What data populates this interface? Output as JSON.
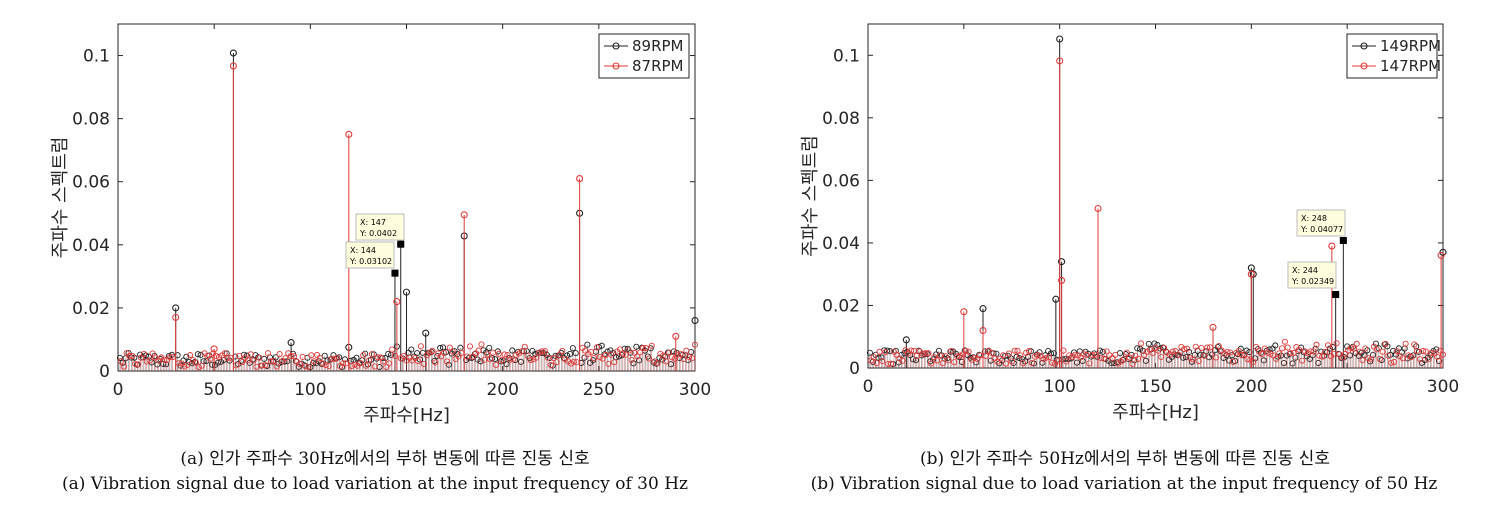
{
  "chart_data": [
    {
      "type": "stem",
      "title": "",
      "xlabel": "주파수[Hz]",
      "ylabel": "주파수 스펙트럼",
      "xlim": [
        0,
        300
      ],
      "ylim": [
        0,
        0.11
      ],
      "xticks": [
        "0",
        "50",
        "100",
        "150",
        "200",
        "250",
        "300"
      ],
      "yticks": [
        "0",
        "0.02",
        "0.04",
        "0.06",
        "0.08",
        "0.1"
      ],
      "legend_position": "top-right",
      "series": [
        {
          "name": "89RPM",
          "color": "#222222",
          "peaks": [
            [
              30,
              0.02
            ],
            [
              60,
              0.1008
            ],
            [
              90,
              0.009
            ],
            [
              120,
              0.0075
            ],
            [
              144,
              0.03102
            ],
            [
              147,
              0.0402
            ],
            [
              150,
              0.025
            ],
            [
              160,
              0.012
            ],
            [
              180,
              0.0428
            ],
            [
              240,
              0.05
            ],
            [
              300,
              0.016
            ]
          ]
        },
        {
          "name": "87RPM",
          "color": "#e03a3a",
          "peaks": [
            [
              30,
              0.017
            ],
            [
              50,
              0.007
            ],
            [
              60,
              0.0967
            ],
            [
              120,
              0.075
            ],
            [
              145,
              0.022
            ],
            [
              180,
              0.0495
            ],
            [
              240,
              0.061
            ],
            [
              290,
              0.011
            ]
          ]
        }
      ],
      "annotations": [
        {
          "x_label": "X: 147",
          "y_label": "Y: 0.0402",
          "x": 147,
          "y": 0.0402
        },
        {
          "x_label": "X: 144",
          "y_label": "Y: 0.03102",
          "x": 144,
          "y": 0.03102
        }
      ],
      "caption_ko": "(a) 인가 주파수 30Hz에서의 부하 변동에 따른 진동 신호",
      "caption_en": "(a) Vibration signal due to load variation at the input frequency of 30 Hz"
    },
    {
      "type": "stem",
      "title": "",
      "xlabel": "주파수[Hz]",
      "ylabel": "주파수 스펙트럼",
      "xlim": [
        0,
        300
      ],
      "ylim": [
        0,
        0.11
      ],
      "xticks": [
        "0",
        "50",
        "100",
        "150",
        "200",
        "250",
        "300"
      ],
      "yticks": [
        "0",
        "0.02",
        "0.04",
        "0.06",
        "0.08",
        "0.1"
      ],
      "legend_position": "top-right",
      "series": [
        {
          "name": "149RPM",
          "color": "#222222",
          "peaks": [
            [
              20,
              0.009
            ],
            [
              60,
              0.019
            ],
            [
              98,
              0.022
            ],
            [
              100,
              0.1052
            ],
            [
              101,
              0.034
            ],
            [
              200,
              0.032
            ],
            [
              201,
              0.03
            ],
            [
              244,
              0.02349
            ],
            [
              248,
              0.04077
            ],
            [
              300,
              0.037
            ]
          ]
        },
        {
          "name": "147RPM",
          "color": "#e03a3a",
          "peaks": [
            [
              50,
              0.018
            ],
            [
              60,
              0.012
            ],
            [
              100,
              0.0982
            ],
            [
              101,
              0.028
            ],
            [
              120,
              0.051
            ],
            [
              180,
              0.013
            ],
            [
              200,
              0.03
            ],
            [
              242,
              0.039
            ],
            [
              299,
              0.036
            ]
          ]
        }
      ],
      "annotations": [
        {
          "x_label": "X: 248",
          "y_label": "Y: 0.04077",
          "x": 248,
          "y": 0.04077
        },
        {
          "x_label": "X: 244",
          "y_label": "Y: 0.02349",
          "x": 244,
          "y": 0.02349
        }
      ],
      "caption_ko": "(b) 인가 주파수 50Hz에서의 부하 변동에 따른 진동 신호",
      "caption_en": "(b) Vibration signal due to load variation at the input frequency of 50 Hz"
    }
  ]
}
